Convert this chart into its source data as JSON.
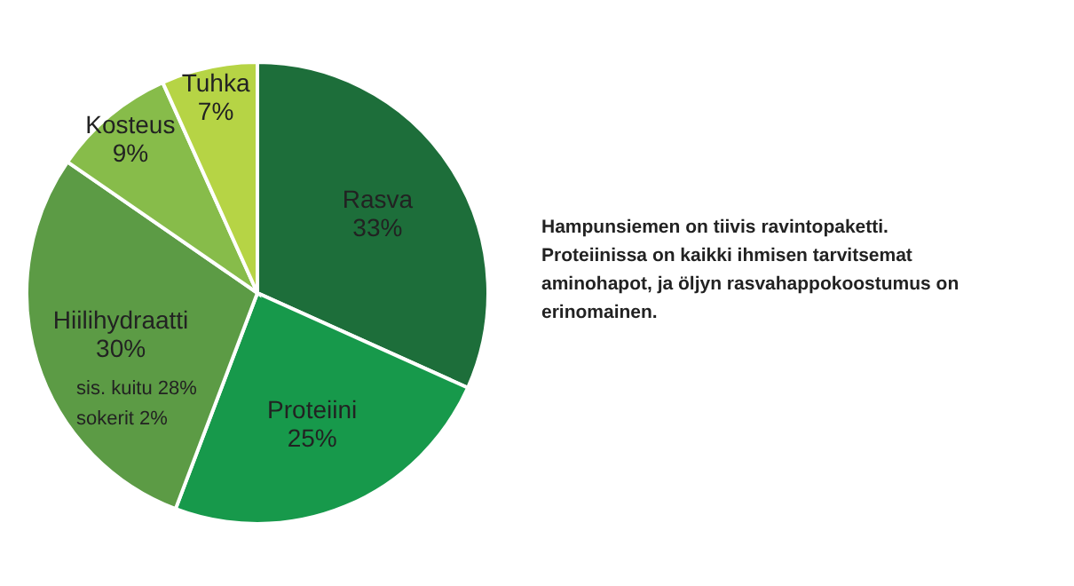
{
  "chart_data": {
    "type": "pie",
    "categories": [
      "Rasva",
      "Proteiini",
      "Hiilihydraatti",
      "Kosteus",
      "Tuhka"
    ],
    "values": [
      33,
      25,
      30,
      9,
      7
    ],
    "colors": [
      "#1d6e3a",
      "#17994b",
      "#5c9b45",
      "#87bc4a",
      "#b6d445"
    ],
    "value_labels": [
      "33%",
      "25%",
      "30%",
      "9%",
      "7%"
    ],
    "legend": false,
    "annotations": [
      {
        "text": "sis. kuitu 28%",
        "x": "Hiilihydraatti"
      },
      {
        "text": "sokerit 2%",
        "x": "Hiilihydraatti"
      },
      "Hampunsiemen on tiivis ravintopaketti. Proteiinissa on kaikki ihmisen tarvitsemat aminohapot, ja öljyn rasvahappokoostumus on erinomainen."
    ]
  }
}
